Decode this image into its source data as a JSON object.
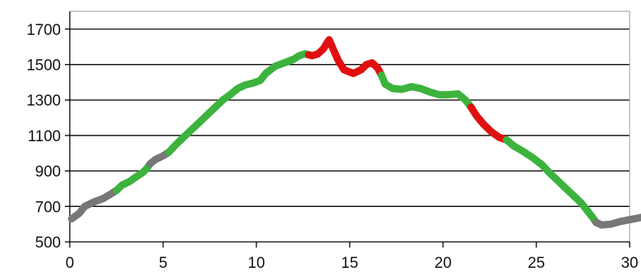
{
  "chart_data": {
    "type": "line",
    "title": "",
    "xlabel": "",
    "ylabel": "",
    "xlim": [
      0,
      30
    ],
    "ylim": [
      500,
      1800
    ],
    "x_ticks": [
      0,
      5,
      10,
      15,
      20,
      25,
      30
    ],
    "y_ticks": [
      500,
      700,
      900,
      1100,
      1300,
      1500,
      1700
    ],
    "x_tick_labels": [
      "0",
      "5",
      "10",
      "15",
      "20",
      "25",
      "30"
    ],
    "y_tick_labels": [
      "500",
      "700",
      "900",
      "1100",
      "1300",
      "1500",
      "1700"
    ],
    "grid": "horizontal",
    "legend": "none",
    "colors": {
      "gray": "#777777",
      "green": "#3cb33c",
      "red": "#e01010",
      "grid": "#000000",
      "axis": "#999999"
    },
    "series": [
      {
        "segments": [
          {
            "color": "gray",
            "points": [
              [
                0.1,
                630
              ],
              [
                0.5,
                660
              ],
              [
                0.8,
                700
              ],
              [
                1.3,
                725
              ],
              [
                1.8,
                745
              ],
              [
                2.2,
                770
              ],
              [
                2.5,
                790
              ]
            ]
          },
          {
            "color": "green",
            "points": [
              [
                2.5,
                790
              ],
              [
                2.8,
                820
              ],
              [
                3.2,
                840
              ],
              [
                3.6,
                870
              ],
              [
                3.9,
                890
              ],
              [
                4.1,
                910
              ],
              [
                4.3,
                940
              ]
            ]
          },
          {
            "color": "gray",
            "points": [
              [
                4.3,
                940
              ],
              [
                4.6,
                965
              ],
              [
                5.0,
                985
              ],
              [
                5.3,
                1005
              ]
            ]
          },
          {
            "color": "green",
            "points": [
              [
                5.3,
                1005
              ],
              [
                5.7,
                1050
              ],
              [
                6.2,
                1100
              ],
              [
                6.7,
                1150
              ],
              [
                7.2,
                1200
              ],
              [
                7.7,
                1250
              ],
              [
                8.2,
                1300
              ],
              [
                8.6,
                1330
              ],
              [
                9.0,
                1365
              ],
              [
                9.4,
                1385
              ],
              [
                9.8,
                1395
              ],
              [
                10.2,
                1410
              ],
              [
                10.5,
                1450
              ],
              [
                11.0,
                1490
              ],
              [
                11.5,
                1510
              ],
              [
                12.0,
                1530
              ],
              [
                12.3,
                1550
              ],
              [
                12.6,
                1560
              ],
              [
                12.8,
                1555
              ]
            ]
          },
          {
            "color": "red",
            "points": [
              [
                12.8,
                1555
              ],
              [
                13.0,
                1550
              ],
              [
                13.3,
                1560
              ],
              [
                13.6,
                1590
              ],
              [
                13.8,
                1625
              ],
              [
                13.9,
                1640
              ],
              [
                14.1,
                1590
              ],
              [
                14.4,
                1520
              ],
              [
                14.7,
                1470
              ],
              [
                15.2,
                1450
              ],
              [
                15.6,
                1470
              ],
              [
                15.9,
                1500
              ],
              [
                16.2,
                1510
              ],
              [
                16.5,
                1480
              ],
              [
                16.7,
                1440
              ]
            ]
          },
          {
            "color": "green",
            "points": [
              [
                16.7,
                1440
              ],
              [
                16.9,
                1390
              ],
              [
                17.3,
                1365
              ],
              [
                17.8,
                1360
              ],
              [
                18.3,
                1375
              ],
              [
                18.8,
                1365
              ],
              [
                19.3,
                1345
              ],
              [
                19.8,
                1330
              ],
              [
                20.3,
                1330
              ],
              [
                20.8,
                1335
              ],
              [
                21.2,
                1300
              ],
              [
                21.5,
                1260
              ]
            ]
          },
          {
            "color": "red",
            "points": [
              [
                21.5,
                1260
              ],
              [
                21.8,
                1210
              ],
              [
                22.2,
                1160
              ],
              [
                22.6,
                1120
              ],
              [
                23.0,
                1090
              ],
              [
                23.4,
                1075
              ]
            ]
          },
          {
            "color": "green",
            "points": [
              [
                23.4,
                1075
              ],
              [
                23.8,
                1040
              ],
              [
                24.3,
                1010
              ],
              [
                24.8,
                975
              ],
              [
                25.3,
                935
              ],
              [
                25.7,
                890
              ],
              [
                26.1,
                850
              ],
              [
                26.6,
                800
              ],
              [
                27.0,
                760
              ],
              [
                27.4,
                720
              ],
              [
                27.7,
                680
              ],
              [
                28.0,
                640
              ],
              [
                28.2,
                610
              ]
            ]
          },
          {
            "color": "gray",
            "points": [
              [
                28.2,
                610
              ],
              [
                28.5,
                595
              ],
              [
                29.0,
                600
              ],
              [
                29.5,
                615
              ],
              [
                30.0,
                625
              ],
              [
                30.5,
                635
              ],
              [
                30.9,
                645
              ],
              [
                31.3,
                652
              ]
            ]
          }
        ]
      }
    ]
  }
}
